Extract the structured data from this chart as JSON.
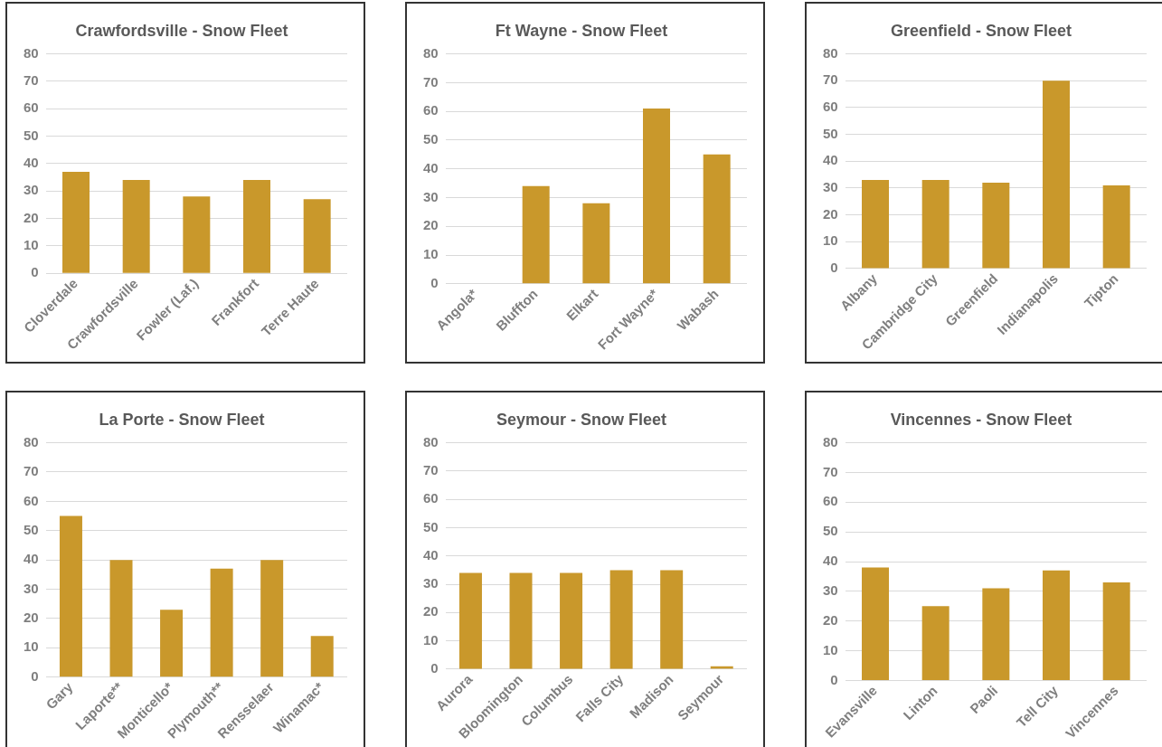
{
  "chart_data": [
    {
      "type": "bar",
      "title": "Crawfordsville - Snow Fleet",
      "categories": [
        "Cloverdale",
        "Crawfordsville",
        "Fowler (Laf.)",
        "Frankfort",
        "Terre Haute"
      ],
      "values": [
        37,
        34,
        28,
        34,
        27
      ],
      "color": "#c9982b",
      "ylim": [
        0,
        80
      ],
      "yticks": [
        0,
        10,
        20,
        30,
        40,
        50,
        60,
        70,
        80
      ],
      "grid": "y"
    },
    {
      "type": "bar",
      "title": "Ft Wayne - Snow Fleet",
      "categories": [
        "Angola*",
        "Bluffton",
        "Elkart",
        "Fort Wayne*",
        "Wabash"
      ],
      "values": [
        null,
        34,
        28,
        61,
        45
      ],
      "color": "#c9982b",
      "ylim": [
        0,
        80
      ],
      "yticks": [
        0,
        10,
        20,
        30,
        40,
        50,
        60,
        70,
        80
      ],
      "grid": "y"
    },
    {
      "type": "bar",
      "title": "Greenfield - Snow Fleet",
      "categories": [
        "Albany",
        "Cambridge City",
        "Greenfield",
        "Indianapolis",
        "Tipton"
      ],
      "values": [
        33,
        33,
        32,
        70,
        31
      ],
      "color": "#c9982b",
      "ylim": [
        0,
        80
      ],
      "yticks": [
        0,
        10,
        20,
        30,
        40,
        50,
        60,
        70,
        80
      ],
      "grid": "y"
    },
    {
      "type": "bar",
      "title": "La Porte - Snow Fleet",
      "categories": [
        "Gary",
        "Laporte**",
        "Monticello*",
        "Plymouth**",
        "Rensselaer",
        "Winamac*"
      ],
      "values": [
        55,
        40,
        23,
        37,
        40,
        14
      ],
      "color": "#c9982b",
      "ylim": [
        0,
        80
      ],
      "yticks": [
        0,
        10,
        20,
        30,
        40,
        50,
        60,
        70,
        80
      ],
      "grid": "y"
    },
    {
      "type": "bar",
      "title": "Seymour - Snow Fleet",
      "categories": [
        "Aurora",
        "Bloomington",
        "Columbus",
        "Falls City",
        "Madison",
        "Seymour"
      ],
      "values": [
        34,
        34,
        34,
        35,
        35,
        1
      ],
      "color": "#c9982b",
      "ylim": [
        0,
        80
      ],
      "yticks": [
        0,
        10,
        20,
        30,
        40,
        50,
        60,
        70,
        80
      ],
      "grid": "y"
    },
    {
      "type": "bar",
      "title": "Vincennes - Snow Fleet",
      "categories": [
        "Evansville",
        "Linton",
        "Paoli",
        "Tell City",
        "Vincennes"
      ],
      "values": [
        38,
        25,
        31,
        37,
        33
      ],
      "color": "#c9982b",
      "ylim": [
        0,
        80
      ],
      "yticks": [
        0,
        10,
        20,
        30,
        40,
        50,
        60,
        70,
        80
      ],
      "grid": "y"
    }
  ]
}
